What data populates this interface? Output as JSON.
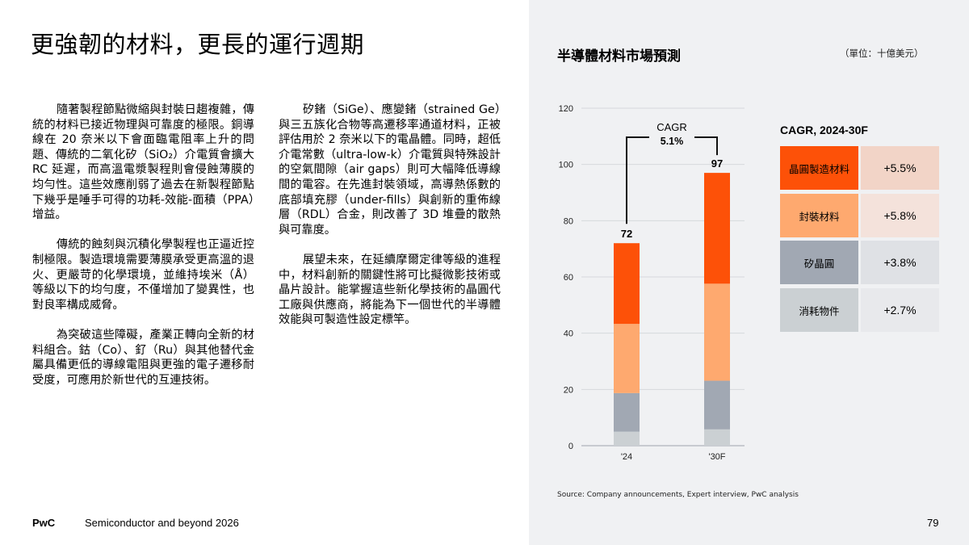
{
  "page": {
    "title": "更強韌的材料，更長的運行週期",
    "column1": [
      "隨著製程節點微縮與封裝日趨複雜，傳統的材料已接近物理與可靠度的極限。銅導線在 20 奈米以下會面臨電阻率上升的問題、傳統的二氧化矽（SiO₂）介電質會擴大 RC 延遲，而高溫電漿製程則會侵蝕薄膜的均勻性。這些效應削弱了過去在新製程節點下幾乎是唾手可得的功耗-效能-面積（PPA）增益。",
      "傳統的蝕刻與沉積化學製程也正逼近控制極限。製造環境需要薄膜承受更高溫的退火、更嚴苛的化學環境，並維持埃米（Å）等級以下的均勻度，不僅增加了變異性，也對良率構成威脅。",
      "為突破這些障礙，產業正轉向全新的材料組合。鈷（Co）、釕（Ru）與其他替代金屬具備更低的導線電阻與更強的電子遷移耐受度，可應用於新世代的互連技術。"
    ],
    "column2": [
      "矽鍺（SiGe）、應變鍺（strained Ge）與三五族化合物等高遷移率通道材料，正被評估用於 2 奈米以下的電晶體。同時，超低介電常數（ultra-low-k）介電質與特殊設計的空氣間隙（air gaps）則可大幅降低導線間的電容。在先進封裝領域，高導熱係數的底部填充膠（under-fills）與創新的重佈線層（RDL）合金，則改善了 3D 堆疊的散熱與可靠度。",
      "展望未來，在延續摩爾定律等級的進程中，材料創新的關鍵性將可比擬微影技術或晶片設計。能掌握這些新化學技術的晶圓代工廠與供應商，將能為下一個世代的半導體效能與可製造性設定標竿。"
    ]
  },
  "chart_data": {
    "type": "bar",
    "stacked": true,
    "title": "半導體材料市場預測",
    "unit": "（單位：十億美元）",
    "categories": [
      "'24",
      "'30F"
    ],
    "series": [
      {
        "name": "消耗物件",
        "values": [
          5.0,
          5.8
        ],
        "color": "#cbd0d3"
      },
      {
        "name": "矽晶圓",
        "values": [
          13.7,
          17.3
        ],
        "color": "#a1a8b3"
      },
      {
        "name": "封裝材料",
        "values": [
          24.6,
          34.5
        ],
        "color": "#fea96f"
      },
      {
        "name": "晶圓製造材料",
        "values": [
          28.7,
          39.4
        ],
        "color": "#fd5108"
      }
    ],
    "totals": [
      "72",
      "97"
    ],
    "ylim": [
      0,
      120
    ],
    "yticks": [
      "0",
      "20",
      "40",
      "60",
      "80",
      "100",
      "120"
    ],
    "grid": true,
    "annotation": {
      "line1": "CAGR",
      "line2": "5.1%"
    },
    "source": "Source: Company announcements, Expert interview, PwC analysis"
  },
  "cagr_table": {
    "heading": "CAGR, 2024-30F",
    "rows": [
      {
        "label": "晶圓製造材料",
        "value": "+5.5%",
        "color": "#fd5108",
        "bg": "#f2d4c7"
      },
      {
        "label": "封裝材料",
        "value": "+5.8%",
        "color": "#fea96f",
        "bg": "#f4e2db"
      },
      {
        "label": "矽晶圓",
        "value": "+3.8%",
        "color": "#a1a8b3",
        "bg": "#dfe1e5"
      },
      {
        "label": "消耗物件",
        "value": "+2.7%",
        "color": "#cbd0d3",
        "bg": "#e8e9ec"
      }
    ]
  },
  "footer": {
    "brand": "PwC",
    "title": "Semiconductor and beyond 2026",
    "page_number": "79"
  }
}
